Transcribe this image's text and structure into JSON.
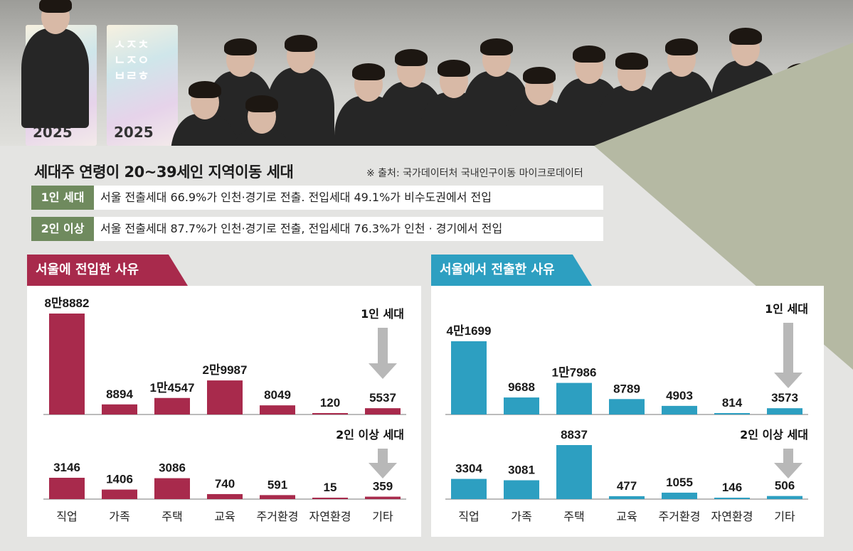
{
  "header": {
    "title": "세대주 연령이 20~39세인 지역이동 세대",
    "source": "※ 출처: 국가데이터처 국내인구이동 마이크로데이터"
  },
  "photo": {
    "banner_text": "ㅅㅈㅊ ㄴㅈㅇ ㅂㄹㅎ",
    "banner_year": "2025"
  },
  "info_rows": [
    {
      "tag": "1인 세대",
      "text": "서울 전출세대 66.9%가 인천·경기로 전출. 전입세대 49.1%가 비수도권에서 전입"
    },
    {
      "tag": "2인 이상",
      "text": "서울 전출세대 87.7%가 인천·경기로 전출, 전입세대 76.3%가 인천 · 경기에서 전입"
    }
  ],
  "colors": {
    "inflow": "#a82a4c",
    "outflow": "#2d9fc1",
    "tag": "#6f8a5e",
    "arrow": "#b5b5b5",
    "wedge": "#b5b9a3"
  },
  "chart_data": [
    {
      "type": "bar",
      "title": "서울에 전입한 사유",
      "categories": [
        "직업",
        "가족",
        "주택",
        "교육",
        "주거환경",
        "자연환경",
        "기타"
      ],
      "series": [
        {
          "name": "1인 세대",
          "values": [
            88882,
            8894,
            14547,
            29987,
            8049,
            120,
            5537
          ],
          "labels": [
            "8만8882",
            "8894",
            "1만4547",
            "2만9987",
            "8049",
            "120",
            "5537"
          ]
        },
        {
          "name": "2인 이상 세대",
          "values": [
            3146,
            1406,
            3086,
            740,
            591,
            15,
            359
          ],
          "labels": [
            "3146",
            "1406",
            "3086",
            "740",
            "591",
            "15",
            "359"
          ]
        }
      ]
    },
    {
      "type": "bar",
      "title": "서울에서 전출한 사유",
      "categories": [
        "직업",
        "가족",
        "주택",
        "교육",
        "주거환경",
        "자연환경",
        "기타"
      ],
      "series": [
        {
          "name": "1인 세대",
          "values": [
            41699,
            9688,
            17986,
            8789,
            4903,
            814,
            3573
          ],
          "labels": [
            "4만1699",
            "9688",
            "1만7986",
            "8789",
            "4903",
            "814",
            "3573"
          ]
        },
        {
          "name": "2인 이상 세대",
          "values": [
            3304,
            3081,
            8837,
            477,
            1055,
            146,
            506
          ],
          "labels": [
            "3304",
            "3081",
            "8837",
            "477",
            "1055",
            "146",
            "506"
          ]
        }
      ]
    }
  ]
}
